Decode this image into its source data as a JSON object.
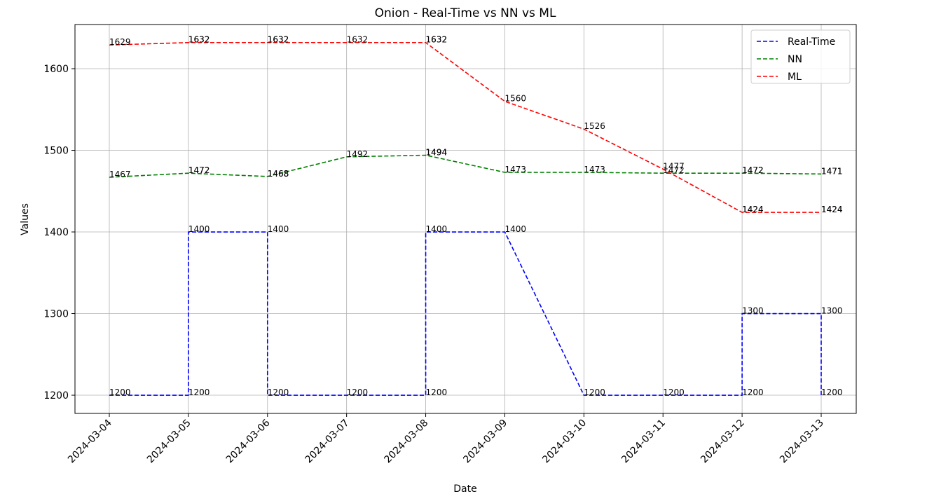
{
  "chart_data": {
    "type": "line",
    "title": "Onion - Real-Time vs NN vs ML",
    "xlabel": "Date",
    "ylabel": "Values",
    "x": [
      "2024-03-04",
      "2024-03-05",
      "2024-03-05",
      "2024-03-06",
      "2024-03-06",
      "2024-03-07",
      "2024-03-08",
      "2024-03-08",
      "2024-03-09",
      "2024-03-10",
      "2024-03-11",
      "2024-03-12",
      "2024-03-12",
      "2024-03-13",
      "2024-03-13"
    ],
    "xticks": [
      "2024-03-04",
      "2024-03-05",
      "2024-03-06",
      "2024-03-07",
      "2024-03-08",
      "2024-03-09",
      "2024-03-10",
      "2024-03-11",
      "2024-03-12",
      "2024-03-13"
    ],
    "series": [
      {
        "name": "Real-Time",
        "color": "#0000ff",
        "values": [
          1200,
          1200,
          1400,
          1400,
          1200,
          1200,
          1200,
          1400,
          1400,
          1200,
          1200,
          1200,
          1300,
          1300,
          1200
        ]
      },
      {
        "name": "NN",
        "color": "#008000",
        "values": [
          1467,
          1472,
          1472,
          1468,
          1468,
          1492,
          1494,
          1494,
          1473,
          1473,
          1472,
          1472,
          1472,
          1471,
          1471
        ]
      },
      {
        "name": "ML",
        "color": "#ff0000",
        "values": [
          1629,
          1632,
          1632,
          1632,
          1632,
          1632,
          1632,
          1632,
          1560,
          1526,
          1477,
          1424,
          1424,
          1424,
          1424
        ]
      }
    ],
    "ylim": [
      1177.7,
      1654.1
    ],
    "yticks": [
      1200,
      1300,
      1400,
      1500,
      1600
    ],
    "grid": true,
    "legend": "upper right",
    "dashed": true
  }
}
